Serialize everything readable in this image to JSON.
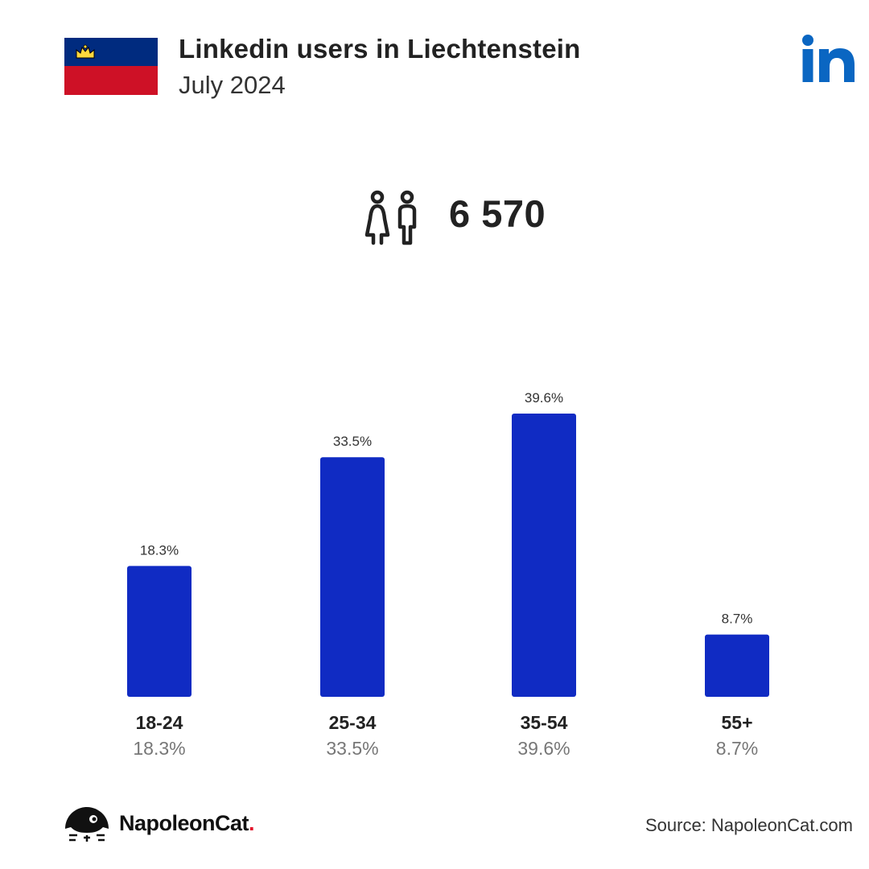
{
  "header": {
    "title": "Linkedin users in Liechtenstein",
    "subtitle": "July 2024"
  },
  "flag": {
    "top_color": "#002b7f",
    "bottom_color": "#ce1126",
    "emblem_color": "#ffd83d"
  },
  "brand_icon": {
    "name": "linkedin-icon",
    "color": "#0a66c2"
  },
  "summary": {
    "icon": "users-icon",
    "count": "6 570"
  },
  "chart_data": {
    "type": "bar",
    "categories": [
      "18-24",
      "25-34",
      "35-54",
      "55+"
    ],
    "values": [
      18.3,
      33.5,
      39.6,
      8.7
    ],
    "value_labels": [
      "18.3%",
      "33.5%",
      "39.6%",
      "8.7%"
    ],
    "ylim": [
      0,
      39.6
    ],
    "grid": false,
    "bar_color": "#102bc3",
    "title": "",
    "xlabel": "",
    "ylabel": ""
  },
  "footer": {
    "brand_name": "NapoleonCat",
    "brand_dot": ".",
    "source": "Source: NapoleonCat.com"
  }
}
